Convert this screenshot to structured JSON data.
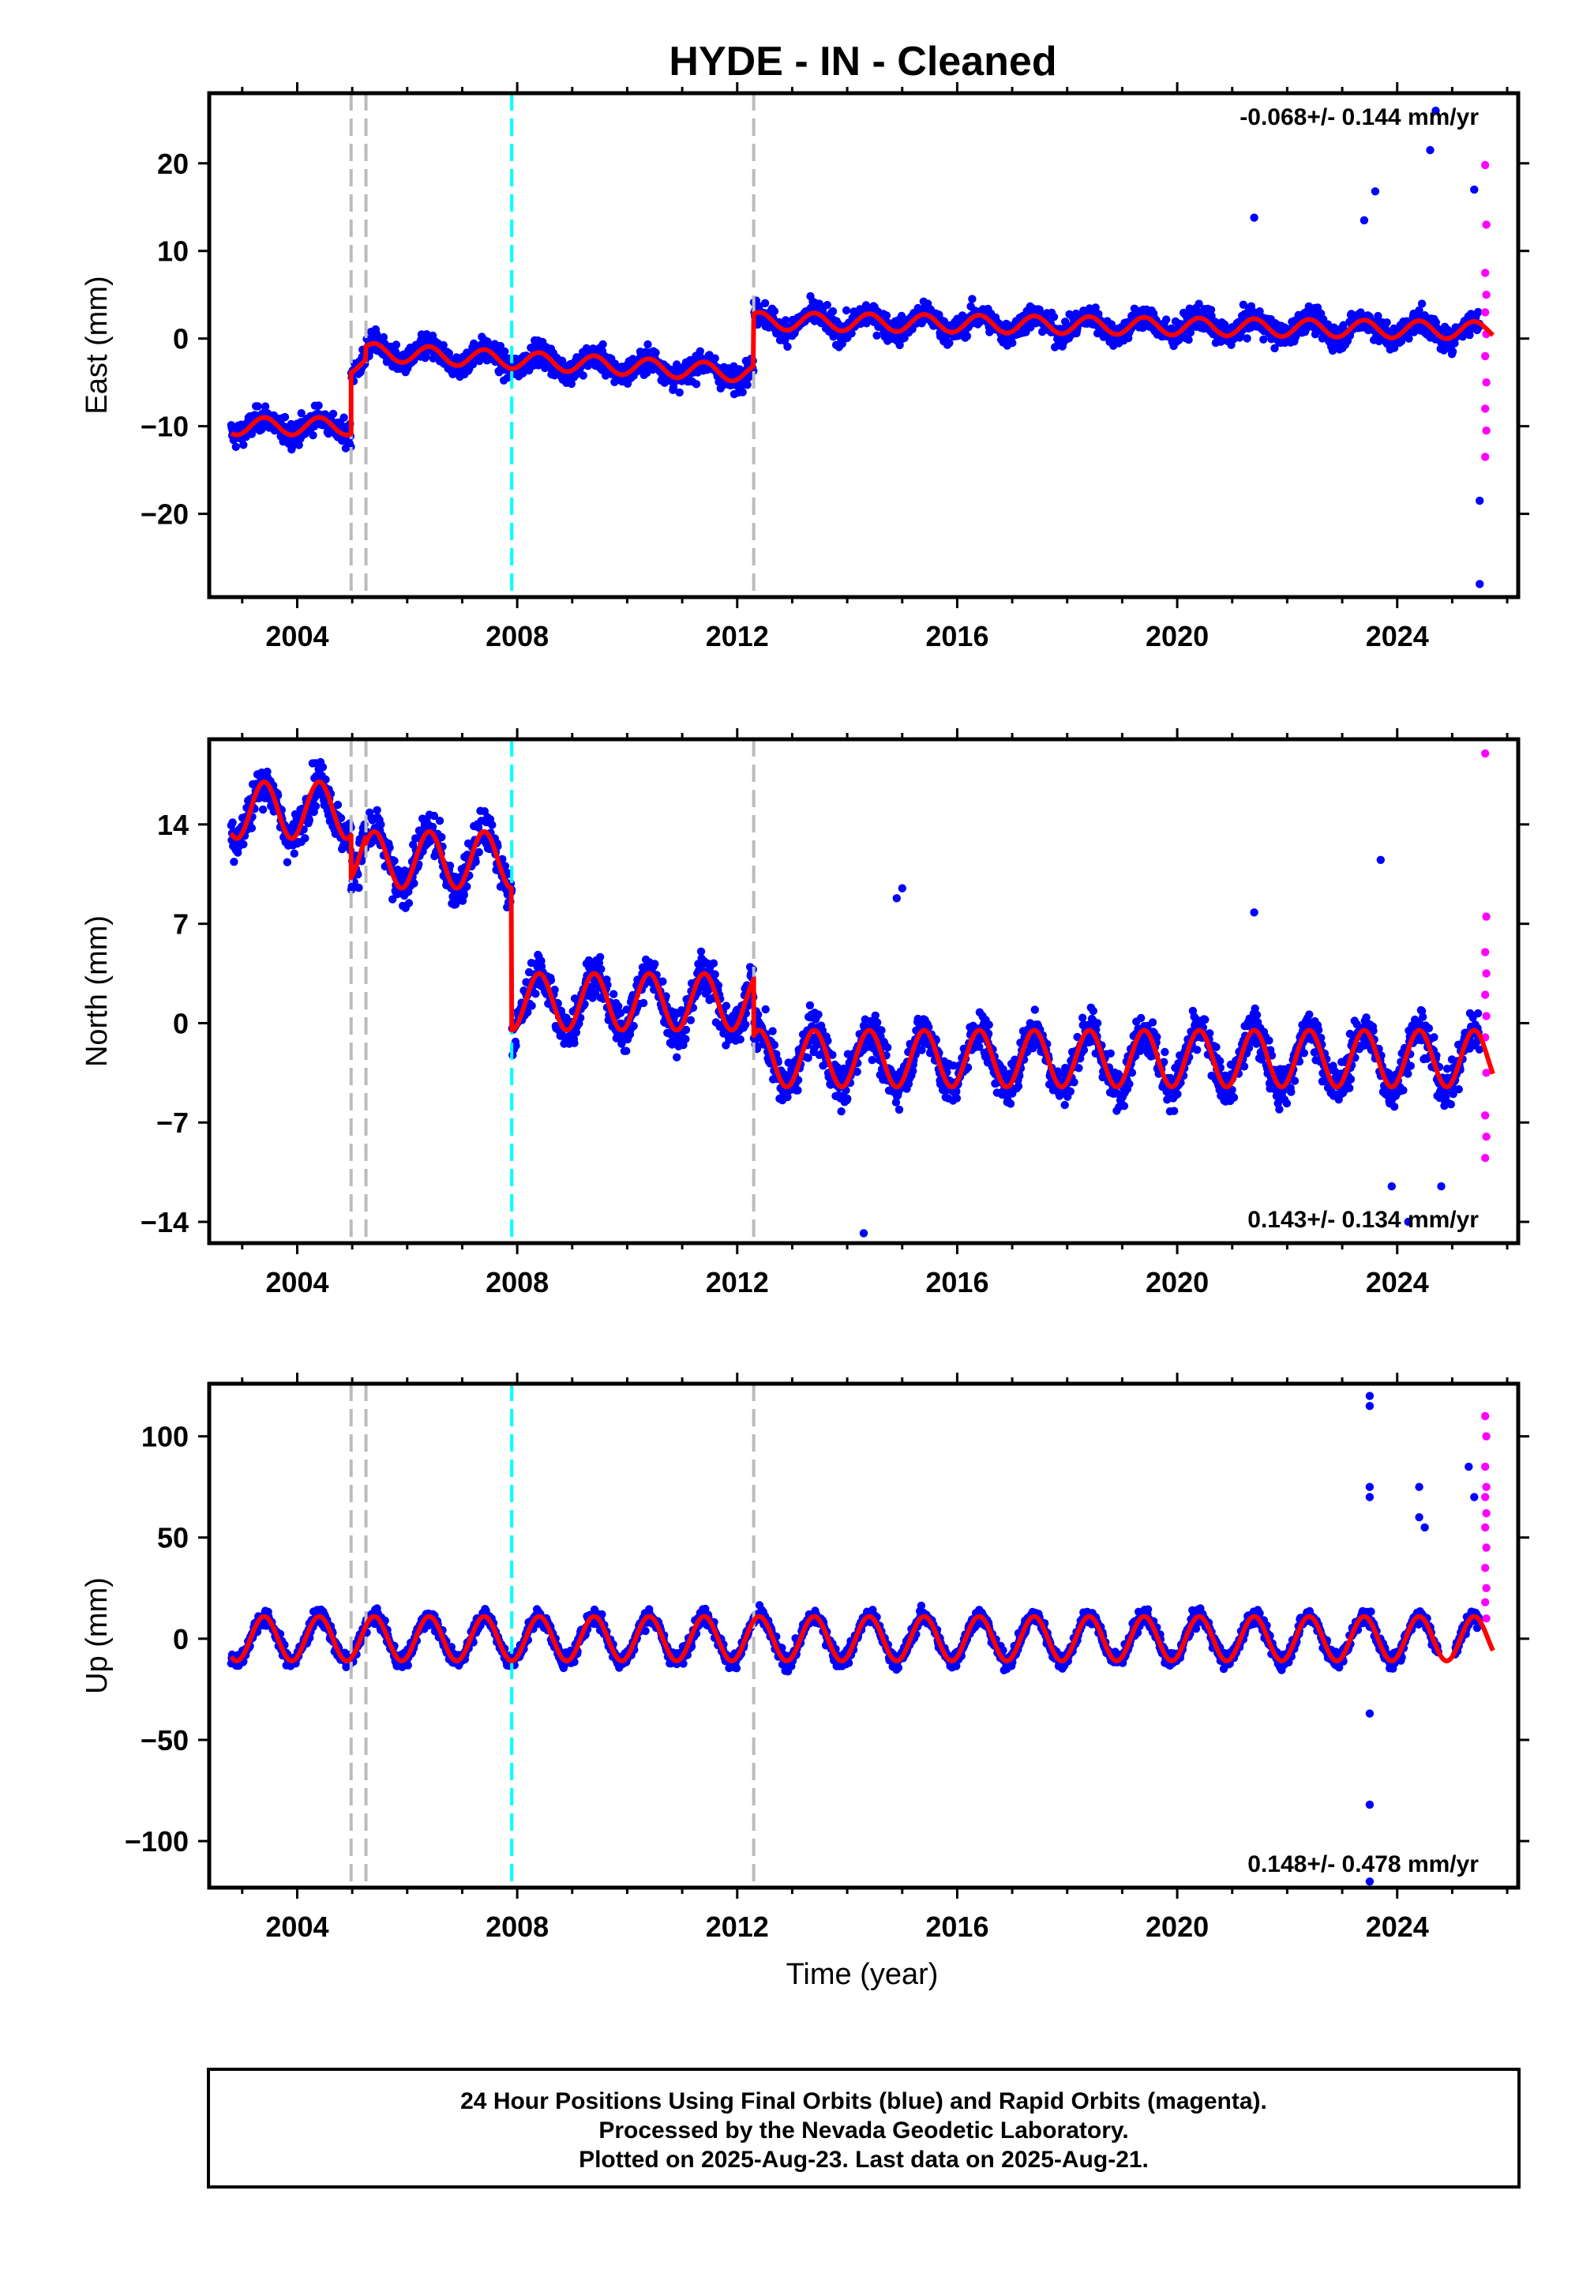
{
  "title": "HYDE  - IN - Cleaned",
  "xlabel": "Time (year)",
  "colors": {
    "final": "#0000ff",
    "rapid": "#ff00ff",
    "model": "#ff0000",
    "offset_gray": "#bbbbbb",
    "offset_cyan": "#00ffff"
  },
  "footer": {
    "line1": "24 Hour Positions Using Final Orbits (blue) and Rapid Orbits (magenta).",
    "line2": "Processed by the Nevada Geodetic Laboratory.",
    "line3": "Plotted on 2025-Aug-23. Last data on 2025-Aug-21."
  },
  "chart_data": [
    {
      "type": "scatter",
      "name": "east",
      "ylabel": "East (mm)",
      "rate_text": "-0.068+/- 0.144 mm/yr",
      "rate_position": "top-right",
      "xlim": [
        2002.4,
        2026.2
      ],
      "ylim": [
        -29.5,
        28
      ],
      "xticks": [
        2004,
        2008,
        2012,
        2016,
        2020,
        2024
      ],
      "yticks": [
        -20,
        -10,
        0,
        10,
        20
      ],
      "offsets": [
        {
          "x": 2004.98,
          "color": "gray"
        },
        {
          "x": 2005.25,
          "color": "gray"
        },
        {
          "x": 2007.9,
          "color": "cyan"
        },
        {
          "x": 2012.3,
          "color": "gray"
        }
      ],
      "model": {
        "segments": [
          [
            2002.8,
            2004.98,
            -10.0
          ],
          [
            2004.98,
            2005.25,
            -3.0
          ],
          [
            2005.25,
            2012.3,
            -1.5
          ],
          [
            2012.3,
            2025.75,
            2.0
          ]
        ],
        "trend_mm_per_yr": -0.068,
        "annual_amplitude": 1.0,
        "segment_trends": [
          0,
          0,
          -0.35,
          -0.08
        ]
      },
      "scatter": {
        "noise_sd": 1.8,
        "outliers": [
          [
            2024.6,
            21.5
          ],
          [
            2024.7,
            26.0
          ],
          [
            2025.5,
            -28.0
          ],
          [
            2025.5,
            -18.5
          ],
          [
            2021.4,
            13.8
          ],
          [
            2023.4,
            13.5
          ],
          [
            2023.6,
            16.8
          ],
          [
            2025.4,
            17.0
          ]
        ]
      },
      "rapid": {
        "x_start": 2025.5,
        "values": [
          19.8,
          13.0,
          7.5,
          5.0,
          3.0,
          0.5,
          -2.0,
          -5.0,
          -8.0,
          -10.5,
          -13.5
        ]
      }
    },
    {
      "type": "scatter",
      "name": "north",
      "ylabel": "North (mm)",
      "rate_text": "0.143+/- 0.134 mm/yr",
      "rate_position": "bottom-right",
      "xlim": [
        2002.4,
        2026.2
      ],
      "ylim": [
        -15.5,
        20
      ],
      "xticks": [
        2004,
        2008,
        2012,
        2016,
        2020,
        2024
      ],
      "yticks": [
        -14,
        -7,
        0,
        7,
        14
      ],
      "offsets": [
        {
          "x": 2004.98,
          "color": "gray"
        },
        {
          "x": 2005.25,
          "color": "gray"
        },
        {
          "x": 2007.9,
          "color": "cyan"
        },
        {
          "x": 2012.3,
          "color": "gray"
        }
      ],
      "model": {
        "segments": [
          [
            2002.8,
            2004.98,
            15.0
          ],
          [
            2004.98,
            2005.25,
            12.0
          ],
          [
            2005.25,
            2007.9,
            11.5
          ],
          [
            2007.9,
            2012.3,
            1.5
          ],
          [
            2012.3,
            2025.75,
            -2.5
          ]
        ],
        "trend_mm_per_yr": 0.143,
        "annual_amplitude": 2.0,
        "segment_trends": [
          0,
          0,
          0,
          0,
          0
        ]
      },
      "scatter": {
        "noise_sd": 1.9,
        "outliers": [
          [
            2014.3,
            -14.8
          ],
          [
            2015.0,
            9.5
          ],
          [
            2014.9,
            8.8
          ],
          [
            2021.4,
            7.8
          ],
          [
            2023.7,
            11.5
          ],
          [
            2024.2,
            -14.0
          ],
          [
            2023.9,
            -11.5
          ],
          [
            2024.8,
            -11.5
          ]
        ]
      },
      "rapid": {
        "x_start": 2025.5,
        "values": [
          19.0,
          7.5,
          5.0,
          3.5,
          2.0,
          0.5,
          -1.0,
          -3.5,
          -6.5,
          -8.0,
          -9.5
        ]
      }
    },
    {
      "type": "scatter",
      "name": "up",
      "ylabel": "Up (mm)",
      "rate_text": "0.148+/- 0.478 mm/yr",
      "rate_position": "bottom-right",
      "xlim": [
        2002.4,
        2026.2
      ],
      "ylim": [
        -123,
        126
      ],
      "xticks": [
        2004,
        2008,
        2012,
        2016,
        2020,
        2024
      ],
      "yticks": [
        -100,
        -50,
        0,
        50,
        100
      ],
      "offsets": [
        {
          "x": 2004.98,
          "color": "gray"
        },
        {
          "x": 2005.25,
          "color": "gray"
        },
        {
          "x": 2007.9,
          "color": "cyan"
        },
        {
          "x": 2012.3,
          "color": "gray"
        }
      ],
      "model": {
        "segments": [
          [
            2002.8,
            2025.75,
            0.0
          ]
        ],
        "trend_mm_per_yr": 0.148,
        "annual_amplitude": 11.0,
        "segment_trends": [
          0
        ]
      },
      "scatter": {
        "noise_sd": 5.0,
        "outliers": [
          [
            2023.5,
            120.0
          ],
          [
            2023.5,
            115.0
          ],
          [
            2023.5,
            75.0
          ],
          [
            2023.5,
            70.0
          ],
          [
            2023.5,
            -37.0
          ],
          [
            2023.5,
            -82.0
          ],
          [
            2023.5,
            -120.0
          ],
          [
            2024.4,
            75.0
          ],
          [
            2024.4,
            60.0
          ],
          [
            2024.5,
            55.0
          ],
          [
            2025.3,
            85.0
          ],
          [
            2025.4,
            70.0
          ]
        ]
      },
      "rapid": {
        "x_start": 2025.5,
        "values": [
          110.0,
          100.0,
          85.0,
          75.0,
          70.0,
          62.0,
          55.0,
          45.0,
          35.0,
          25.0,
          18.0,
          10.0
        ]
      }
    }
  ]
}
